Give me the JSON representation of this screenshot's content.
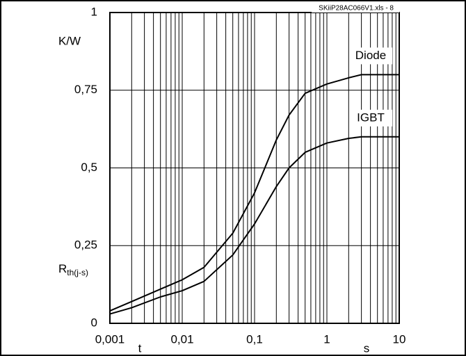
{
  "chart_data": {
    "type": "line",
    "title": "SKiiP28AC066V1.xls - 8",
    "y_unit": "K/W",
    "y_label": {
      "main": "R",
      "sub": "th(j-s)"
    },
    "x_label": "t",
    "x_unit": "s",
    "xscale": "log",
    "x": [
      0.001,
      0.002,
      0.005,
      0.01,
      0.02,
      0.05,
      0.1,
      0.2,
      0.3,
      0.5,
      1,
      2,
      3,
      10
    ],
    "series": [
      {
        "name": "Diode",
        "color": "#000000",
        "values": [
          0.04,
          0.07,
          0.11,
          0.14,
          0.18,
          0.29,
          0.42,
          0.59,
          0.67,
          0.74,
          0.77,
          0.79,
          0.8,
          0.8
        ]
      },
      {
        "name": "IGBT",
        "color": "#000000",
        "values": [
          0.03,
          0.05,
          0.085,
          0.105,
          0.135,
          0.22,
          0.32,
          0.44,
          0.5,
          0.55,
          0.58,
          0.595,
          0.6,
          0.6
        ]
      }
    ],
    "xlim": [
      0.001,
      10
    ],
    "ylim": [
      0,
      1
    ],
    "xticks": [
      {
        "value": 0.001,
        "label": "0,001"
      },
      {
        "value": 0.01,
        "label": "0,01"
      },
      {
        "value": 0.1,
        "label": "0,1"
      },
      1,
      10
    ],
    "xminorticks": [
      0.002,
      0.003,
      0.004,
      0.005,
      0.006,
      0.007,
      0.008,
      0.009,
      0.02,
      0.03,
      0.04,
      0.05,
      0.06,
      0.07,
      0.08,
      0.09,
      0.2,
      0.3,
      0.4,
      0.5,
      0.6,
      0.7,
      0.8,
      0.9,
      2,
      3,
      4,
      5,
      6,
      7,
      8,
      9
    ],
    "yticks": [
      0,
      {
        "value": 0.25,
        "label": "0,25"
      },
      {
        "value": 0.5,
        "label": "0,5"
      },
      {
        "value": 0.75,
        "label": "0,75"
      },
      1
    ],
    "grid": true
  }
}
